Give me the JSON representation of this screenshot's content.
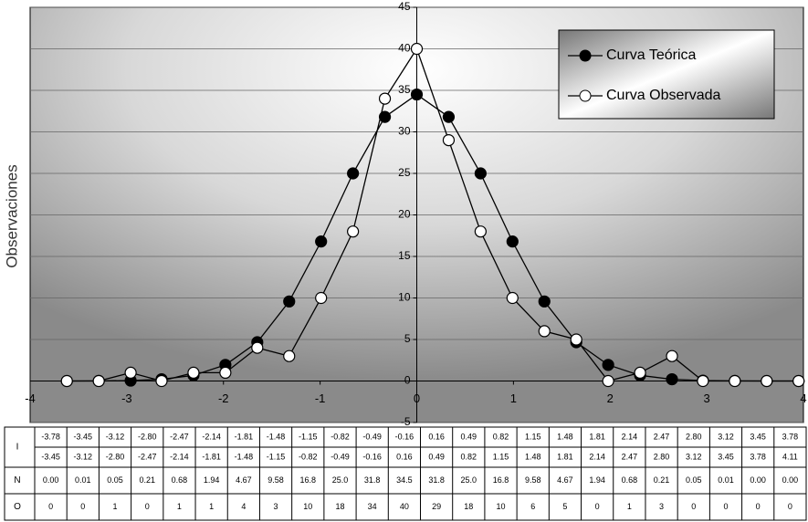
{
  "chart_data": {
    "type": "line",
    "y_label": "Observaciones",
    "x": [
      -3.62,
      -3.29,
      -2.96,
      -2.64,
      -2.31,
      -1.98,
      -1.65,
      -1.32,
      -0.99,
      -0.66,
      -0.33,
      0,
      0.33,
      0.66,
      0.99,
      1.32,
      1.65,
      1.98,
      2.31,
      2.64,
      2.96,
      3.29,
      3.62,
      3.95
    ],
    "xlim": [
      -4,
      4
    ],
    "xticks": [
      -4,
      -3,
      -2,
      -1,
      0,
      1,
      2,
      3,
      4
    ],
    "ylim": [
      -5,
      45
    ],
    "yticks": [
      -5,
      0,
      5,
      10,
      15,
      20,
      25,
      30,
      35,
      40,
      45
    ],
    "grid": true,
    "legend": "top-right",
    "series": [
      {
        "name": "Curva Teórica",
        "color": "#000000",
        "marker": "filled",
        "values": [
          0,
          0.01,
          0.05,
          0.21,
          0.68,
          1.94,
          4.67,
          9.58,
          16.8,
          25,
          31.8,
          34.5,
          31.8,
          25,
          16.8,
          9.58,
          4.67,
          1.94,
          0.68,
          0.21,
          0.05,
          0.01,
          0,
          0
        ],
        "value_labels": [
          "0.00",
          "0.01",
          "0.05",
          "0.21",
          "0.68",
          "1.94",
          "4.67",
          "9.58",
          "16.8",
          "25.0",
          "31.8",
          "34.5",
          "31.8",
          "25.0",
          "16.8",
          "9.58",
          "4.67",
          "1.94",
          "0.68",
          "0.21",
          "0.05",
          "0.01",
          "0.00",
          "0.00"
        ]
      },
      {
        "name": "Curva Observada",
        "color": "#000000",
        "marker": "open",
        "values": [
          0,
          0,
          1,
          0,
          1,
          1,
          4,
          3,
          10,
          18,
          34,
          40,
          29,
          18,
          10,
          6,
          5,
          0,
          1,
          3,
          0,
          0,
          0,
          0
        ]
      }
    ],
    "table": {
      "row_labels": [
        "I",
        "N",
        "O"
      ],
      "interval_low": [
        "-3.78",
        "-3.45",
        "-3.12",
        "-2.80",
        "-2.47",
        "-2.14",
        "-1.81",
        "-1.48",
        "-1.15",
        "-0.82",
        "-0.49",
        "-0.16",
        "0.16",
        "0.49",
        "0.82",
        "1.15",
        "1.48",
        "1.81",
        "2.14",
        "2.47",
        "2.80",
        "3.12",
        "3.45",
        "3.78"
      ],
      "interval_high": [
        "-3.45",
        "-3.12",
        "-2.80",
        "-2.47",
        "-2.14",
        "-1.81",
        "-1.48",
        "-1.15",
        "-0.82",
        "-0.49",
        "-0.16",
        "0.16",
        "0.49",
        "0.82",
        "1.15",
        "1.48",
        "1.81",
        "2.14",
        "2.47",
        "2.80",
        "3.12",
        "3.45",
        "3.78",
        "4.11"
      ]
    }
  }
}
